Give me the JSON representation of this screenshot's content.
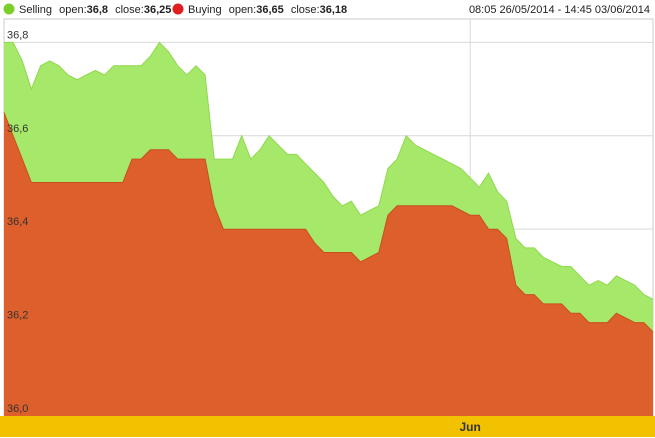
{
  "legend": {
    "selling": {
      "label": "Selling",
      "open_label": "open:",
      "open": "36,8",
      "close_label": "close:",
      "close": "36,25"
    },
    "buying": {
      "label": "Buying",
      "open_label": "open:",
      "open": "36,65",
      "close_label": "close:",
      "close": "36,18"
    },
    "date_range": "08:05 26/05/2014 - 14:45 03/06/2014"
  },
  "colors": {
    "selling": "#a6e86a",
    "selling_dot": "#7ccf2b",
    "buying": "#dd5f2b",
    "buying_dot": "#e02020",
    "axis_band": "#f2c200",
    "grid": "#d9d9d9"
  },
  "chart_data": {
    "type": "area",
    "title": "",
    "xlabel": "",
    "ylabel": "",
    "ylim": [
      36.0,
      36.85
    ],
    "yticks": [
      "36,0",
      "36,2",
      "36,4",
      "36,6",
      "36,8"
    ],
    "ytick_values": [
      36.0,
      36.2,
      36.4,
      36.6,
      36.8
    ],
    "x_tick_labels": [
      {
        "label": "Jun",
        "index": 51
      }
    ],
    "grid": true,
    "legend_position": "top",
    "series": [
      {
        "name": "Selling",
        "values": [
          36.8,
          36.8,
          36.76,
          36.7,
          36.75,
          36.76,
          36.75,
          36.73,
          36.72,
          36.73,
          36.74,
          36.73,
          36.75,
          36.75,
          36.75,
          36.75,
          36.77,
          36.8,
          36.78,
          36.75,
          36.73,
          36.75,
          36.73,
          36.55,
          36.55,
          36.55,
          36.6,
          36.55,
          36.57,
          36.6,
          36.58,
          36.56,
          36.56,
          36.54,
          36.52,
          36.5,
          36.47,
          36.45,
          36.46,
          36.43,
          36.44,
          36.45,
          36.53,
          36.55,
          36.6,
          36.58,
          36.57,
          36.56,
          36.55,
          36.54,
          36.53,
          36.51,
          36.49,
          36.52,
          36.48,
          36.46,
          36.38,
          36.36,
          36.36,
          36.34,
          36.33,
          36.32,
          36.32,
          36.3,
          36.28,
          36.29,
          36.28,
          36.3,
          36.29,
          36.28,
          36.26,
          36.25
        ]
      },
      {
        "name": "Buying",
        "values": [
          36.65,
          36.6,
          36.55,
          36.5,
          36.5,
          36.5,
          36.5,
          36.5,
          36.5,
          36.5,
          36.5,
          36.5,
          36.5,
          36.5,
          36.55,
          36.55,
          36.57,
          36.57,
          36.57,
          36.55,
          36.55,
          36.55,
          36.55,
          36.45,
          36.4,
          36.4,
          36.4,
          36.4,
          36.4,
          36.4,
          36.4,
          36.4,
          36.4,
          36.4,
          36.37,
          36.35,
          36.35,
          36.35,
          36.35,
          36.33,
          36.34,
          36.35,
          36.43,
          36.45,
          36.45,
          36.45,
          36.45,
          36.45,
          36.45,
          36.45,
          36.44,
          36.43,
          36.43,
          36.4,
          36.4,
          36.38,
          36.28,
          36.26,
          36.26,
          36.24,
          36.24,
          36.24,
          36.22,
          36.22,
          36.2,
          36.2,
          36.2,
          36.22,
          36.21,
          36.2,
          36.2,
          36.18
        ]
      }
    ]
  }
}
